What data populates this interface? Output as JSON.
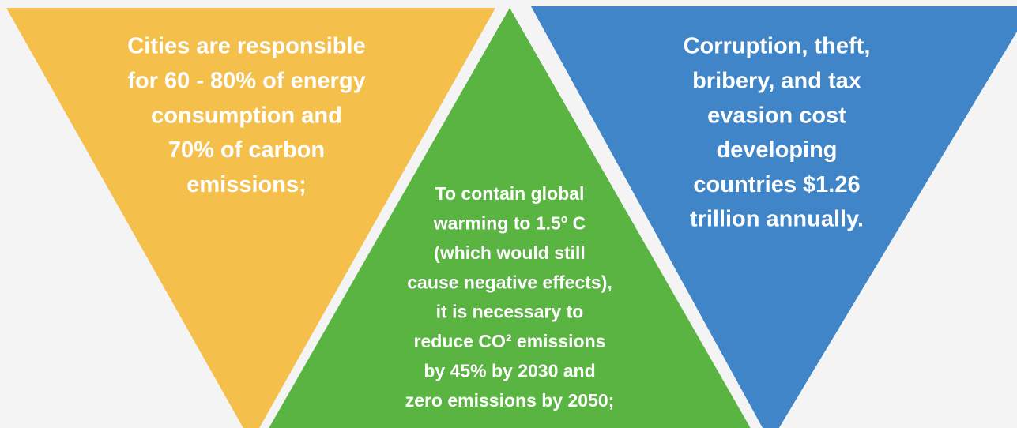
{
  "panels": [
    {
      "lines": [
        "Cities are responsible",
        "for 60 - 80% of energy",
        "consumption and",
        "70% of carbon",
        "emissions;"
      ]
    },
    {
      "lines": [
        "To contain global",
        "warming to 1.5º C",
        "(which would still",
        "cause negative effects),",
        "it is necessary to",
        "reduce CO² emissions",
        "by 45% by 2030 and",
        "zero emissions by 2050;"
      ]
    },
    {
      "lines": [
        "Corruption, theft,",
        "bribery, and tax",
        "evasion cost",
        "developing",
        "countries $1.26",
        "trillion annually."
      ]
    }
  ]
}
